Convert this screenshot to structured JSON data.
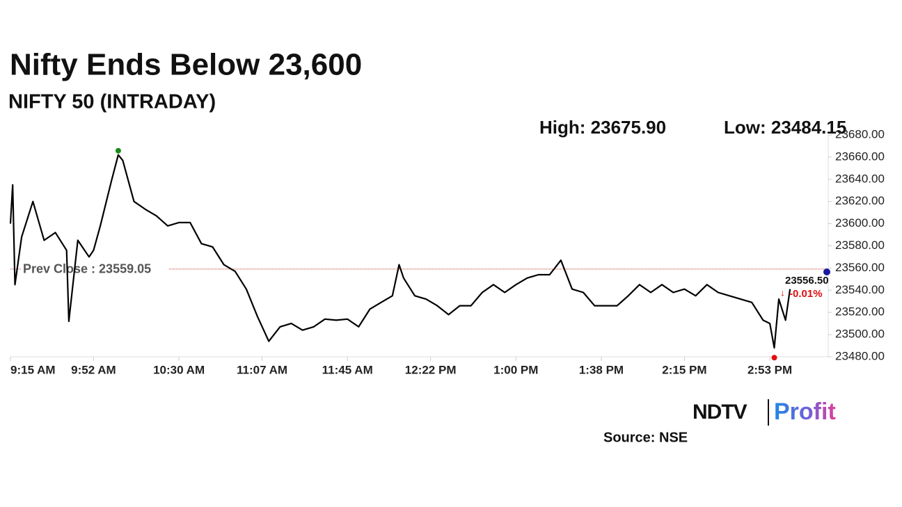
{
  "chart_data": {
    "type": "line",
    "title": "Nifty Ends Below 23,600",
    "subtitle": "NIFTY 50 (INTRADAY)",
    "high_label": "High: 23675.90",
    "low_label": "Low: 23484.15",
    "source": "Source: NSE",
    "logo": {
      "left": "NDTV",
      "right": "Profit"
    },
    "x": [
      "9:15 AM",
      "9:16 AM",
      "9:17 AM",
      "9:20 AM",
      "9:25 AM",
      "9:30 AM",
      "9:35 AM",
      "9:40 AM",
      "9:41 AM",
      "9:45 AM",
      "9:50 AM",
      "9:52 AM",
      "9:55 AM",
      "10:00 AM",
      "10:03 AM",
      "10:05 AM",
      "10:10 AM",
      "10:15 AM",
      "10:20 AM",
      "10:25 AM",
      "10:30 AM",
      "10:35 AM",
      "10:40 AM",
      "10:45 AM",
      "10:50 AM",
      "10:55 AM",
      "11:00 AM",
      "11:05 AM",
      "11:10 AM",
      "11:15 AM",
      "11:20 AM",
      "11:25 AM",
      "11:30 AM",
      "11:35 AM",
      "11:40 AM",
      "11:45 AM",
      "11:50 AM",
      "11:55 AM",
      "12:00 PM",
      "12:05 PM",
      "12:08 PM",
      "12:10 PM",
      "12:15 PM",
      "12:20 PM",
      "12:25 PM",
      "12:30 PM",
      "12:35 PM",
      "12:40 PM",
      "12:45 PM",
      "12:50 PM",
      "12:55 PM",
      "1:00 PM",
      "1:05 PM",
      "1:10 PM",
      "1:15 PM",
      "1:20 PM",
      "1:25 PM",
      "1:30 PM",
      "1:35 PM",
      "1:40 PM",
      "1:45 PM",
      "1:50 PM",
      "1:55 PM",
      "2:00 PM",
      "2:05 PM",
      "2:10 PM",
      "2:15 PM",
      "2:20 PM",
      "2:25 PM",
      "2:30 PM",
      "2:35 PM",
      "2:40 PM",
      "2:45 PM",
      "2:50 PM",
      "2:53 PM",
      "2:55 PM",
      "2:57 PM",
      "3:00 PM",
      "3:02 PM"
    ],
    "series": [
      {
        "name": "NIFTY 50",
        "color": "#000000",
        "values": [
          23600,
          23635,
          23545,
          23588,
          23620,
          23585,
          23592,
          23576,
          23512,
          23585,
          23570,
          23576,
          23598,
          23639,
          23662,
          23657,
          23620,
          23613,
          23607,
          23598,
          23601,
          23601,
          23582,
          23579,
          23563,
          23557,
          23541,
          23516,
          23494,
          23507,
          23510,
          23504,
          23507,
          23514,
          23513,
          23514,
          23507,
          23523,
          23529,
          23535,
          23563,
          23551,
          23535,
          23532,
          23526,
          23518,
          23526,
          23526,
          23538,
          23545,
          23538,
          23545,
          23551,
          23554,
          23554,
          23567,
          23541,
          23538,
          23526,
          23526,
          23526,
          23535,
          23545,
          23538,
          23545,
          23538,
          23541,
          23535,
          23545,
          23538,
          23535,
          23532,
          23529,
          23513,
          23510,
          23488,
          23532,
          23513,
          23541
        ]
      }
    ],
    "high_color": "#1a8a1a",
    "low_color": "#e01010",
    "prev_close": {
      "value": 23559.05,
      "label": "Prev Close : 23559.05",
      "color": "#c0392b"
    },
    "last": {
      "value": 23556.5,
      "value_label": "23556.50",
      "change_label": "-0.01%",
      "change_color": "#e01010",
      "color": "#1a1aa0"
    },
    "xlim": [
      "9:15 AM",
      "3:19 PM"
    ],
    "xticks": [
      "9:15 AM",
      "9:52 AM",
      "10:30 AM",
      "11:07 AM",
      "11:45 AM",
      "12:22 PM",
      "1:00 PM",
      "1:38 PM",
      "2:15 PM",
      "2:53 PM"
    ],
    "ylim": [
      23480,
      23680
    ],
    "yticks": [
      {
        "value": 23480,
        "label": "23480.00"
      },
      {
        "value": 23500,
        "label": "23500.00"
      },
      {
        "value": 23520,
        "label": "23520.00"
      },
      {
        "value": 23540,
        "label": "23540.00"
      },
      {
        "value": 23560,
        "label": "23560.00"
      },
      {
        "value": 23580,
        "label": "23580.00"
      },
      {
        "value": 23600,
        "label": "23600.00"
      },
      {
        "value": 23620,
        "label": "23620.00"
      },
      {
        "value": 23640,
        "label": "23640.00"
      },
      {
        "value": 23660,
        "label": "23660.00"
      },
      {
        "value": 23680,
        "label": "23680.00"
      }
    ]
  }
}
